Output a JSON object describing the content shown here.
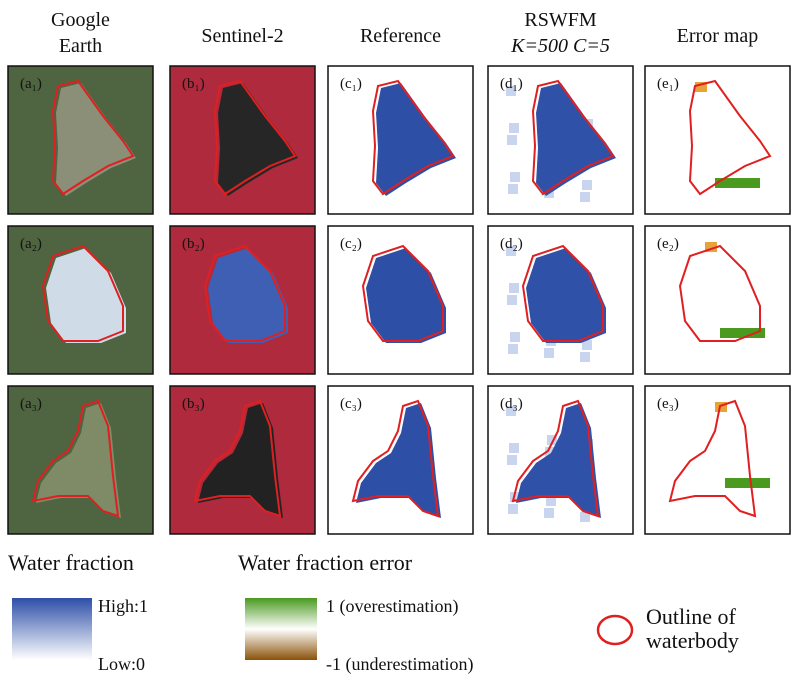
{
  "headers": [
    [
      "Google",
      "Earth"
    ],
    [
      "Sentinel-2"
    ],
    [
      "Reference"
    ],
    [
      "RSWFM",
      "K=500 C=5"
    ],
    [
      "Error map"
    ]
  ],
  "panels": [
    [
      "(a₁)",
      "(b₁)",
      "(c₁)",
      "(d₁)",
      "(e₁)"
    ],
    [
      "(a₂)",
      "(b₂)",
      "(c₂)",
      "(d₂)",
      "(e₂)"
    ],
    [
      "(a₃)",
      "(b₃)",
      "(c₃)",
      "(d₃)",
      "(e₃)"
    ]
  ],
  "legend": {
    "water_title": "Water fraction",
    "high": "High:1",
    "low": "Low:0",
    "error_title": "Water fraction error",
    "over": "1 (overestimation)",
    "under": "-1 (underestimation)",
    "outline": [
      "Outline of",
      "waterbody"
    ]
  }
}
